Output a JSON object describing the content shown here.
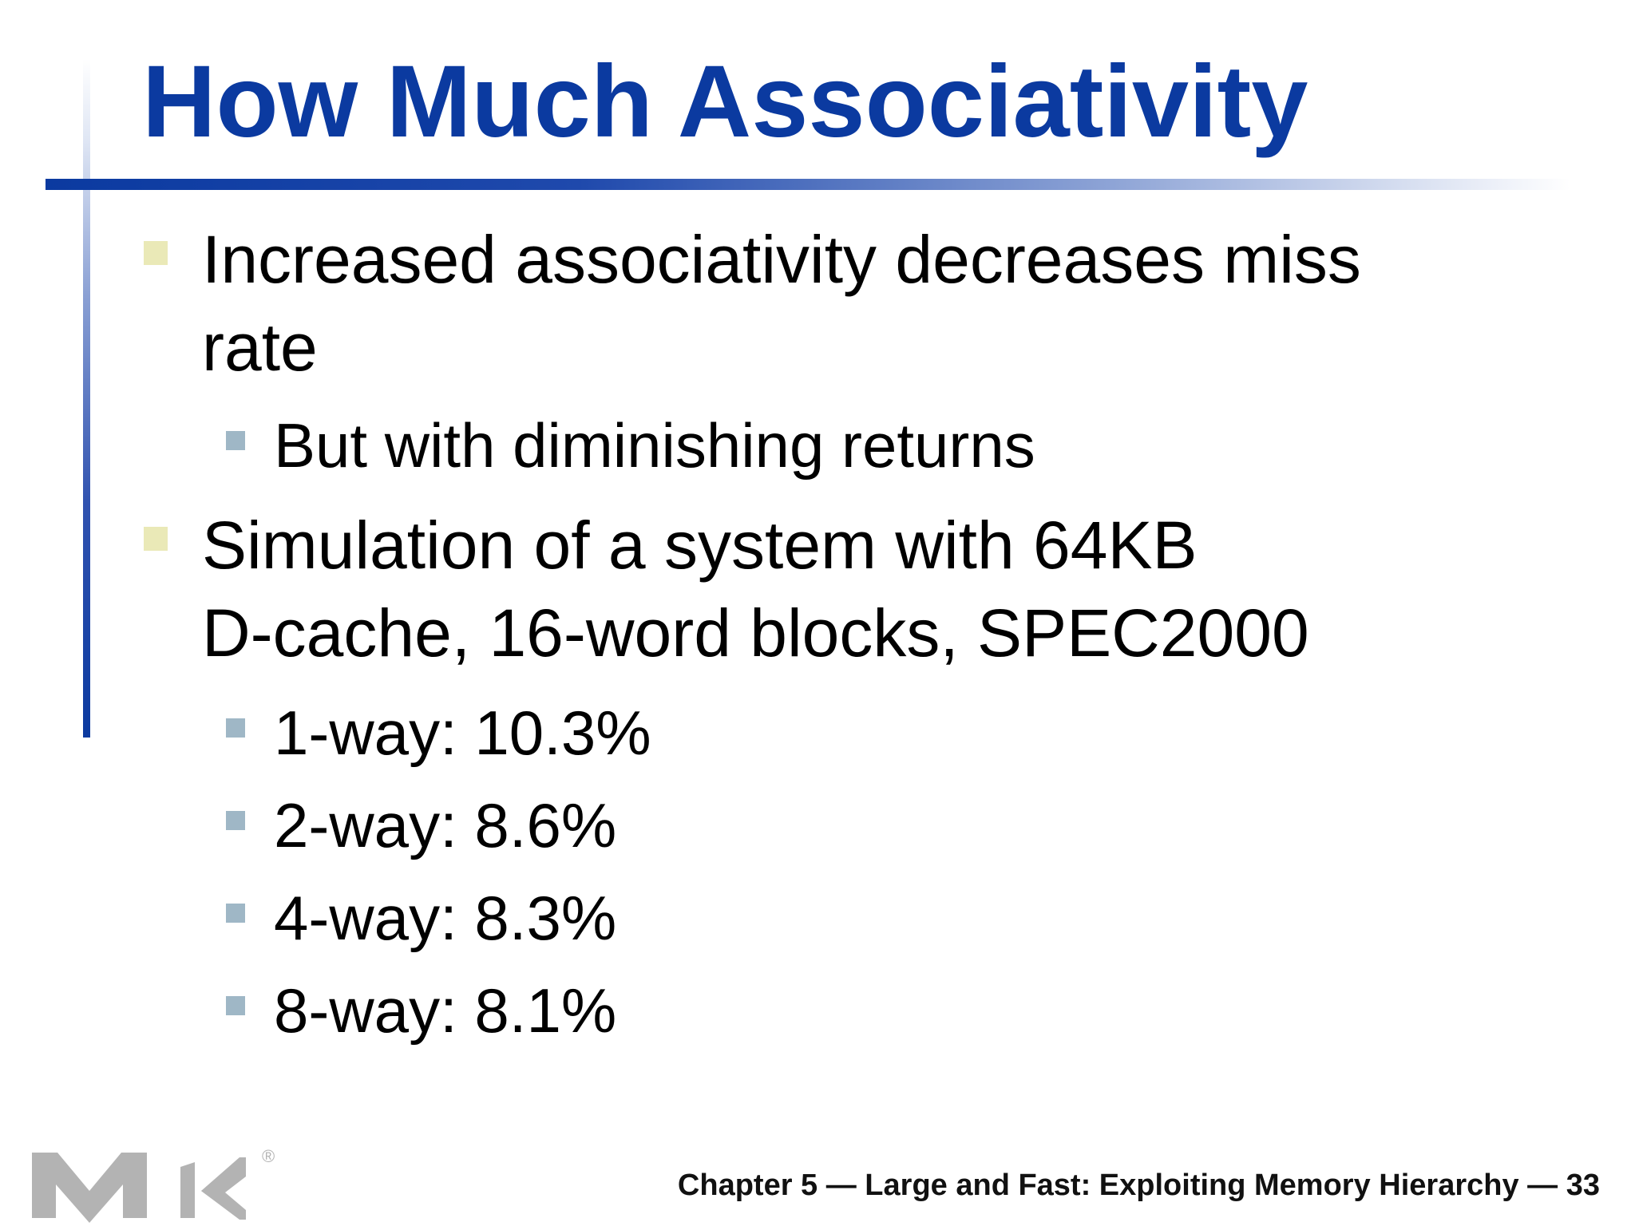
{
  "slide": {
    "title": "How Much Associativity",
    "bullets": [
      {
        "text": "Increased associativity decreases miss rate",
        "sub": [
          "But with diminishing returns"
        ]
      },
      {
        "text_line1": "Simulation of a system with 64KB",
        "text_line2": "D-cache, 16-word blocks, SPEC2000",
        "sub": [
          "1-way: 10.3%",
          "2-way: 8.6%",
          "4-way: 8.3%",
          "8-way: 8.1%"
        ]
      }
    ],
    "footer": "Chapter 5 — Large and Fast: Exploiting Memory Hierarchy — 33",
    "logo": {
      "name": "mk-logo",
      "registered_mark": "®"
    },
    "colors": {
      "title": "#0b3aa0",
      "bullet_l1": "#eae9b7",
      "bullet_l2": "#9fb7c6"
    }
  }
}
